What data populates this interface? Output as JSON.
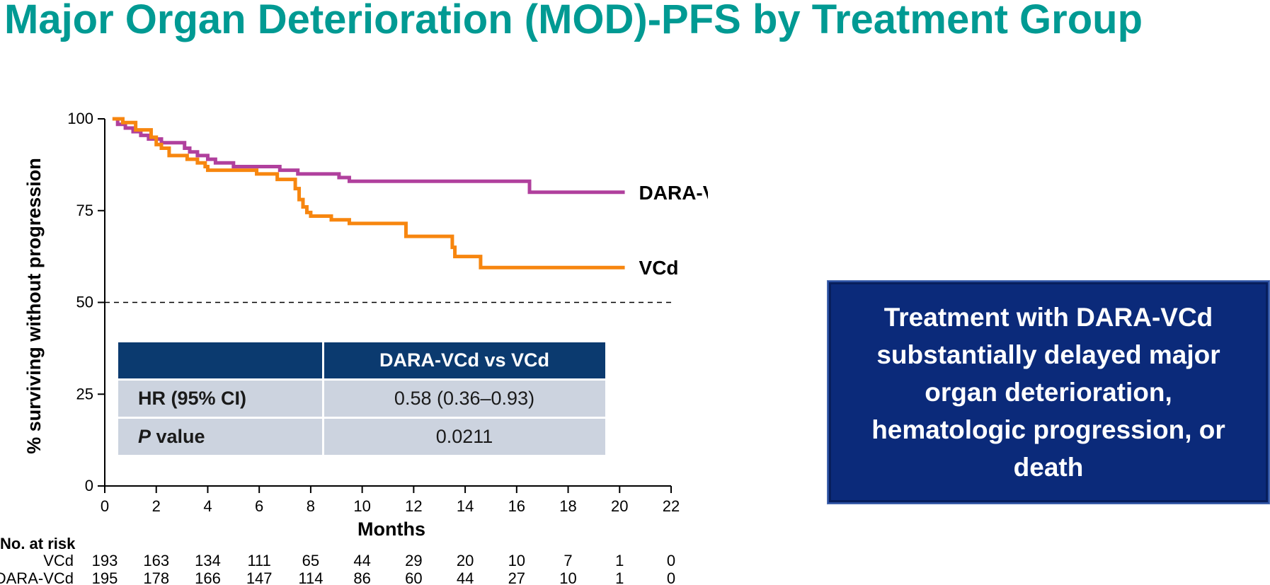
{
  "title": "Major Organ Deterioration (MOD)-PFS by Treatment Group",
  "callout": "Treatment with DARA-VCd substantially delayed major organ deterioration, hematologic progression, or death",
  "stats_table": {
    "header": [
      "",
      "DARA-VCd vs VCd"
    ],
    "rows": [
      {
        "label": "HR (95% CI)",
        "value": "0.58 (0.36–0.93)"
      },
      {
        "label_italic": "P",
        "label_rest": " value",
        "value": "0.0211"
      }
    ]
  },
  "risk_table": {
    "heading": "No. at risk",
    "rows": [
      {
        "name": "VCd",
        "values": [
          "193",
          "163",
          "134",
          "111",
          "65",
          "44",
          "29",
          "20",
          "10",
          "7",
          "1",
          "0"
        ]
      },
      {
        "name": "DARA-VCd",
        "values": [
          "195",
          "178",
          "166",
          "147",
          "114",
          "86",
          "60",
          "44",
          "27",
          "10",
          "1",
          "0"
        ]
      }
    ]
  },
  "chart_data": {
    "type": "line",
    "xlabel": "Months",
    "ylabel": "% surviving without progression",
    "xlim": [
      0,
      22
    ],
    "ylim": [
      0,
      100
    ],
    "x_ticks": [
      "0",
      "2",
      "4",
      "6",
      "8",
      "10",
      "12",
      "14",
      "16",
      "18",
      "20",
      "22"
    ],
    "y_ticks": [
      "0",
      "25",
      "50",
      "75",
      "100"
    ],
    "reference_line": {
      "y": 50,
      "style": "dashed"
    },
    "series": [
      {
        "name": "DARA-VCd",
        "color": "#b0409d",
        "step": true,
        "points": [
          [
            0.3,
            100
          ],
          [
            0.5,
            98.5
          ],
          [
            0.8,
            97.5
          ],
          [
            1.1,
            96.5
          ],
          [
            1.4,
            95.5
          ],
          [
            1.7,
            94.5
          ],
          [
            2.2,
            93.5
          ],
          [
            3.1,
            92
          ],
          [
            3.3,
            91
          ],
          [
            3.6,
            90
          ],
          [
            4.0,
            89
          ],
          [
            4.3,
            88
          ],
          [
            5.0,
            87
          ],
          [
            6.8,
            86
          ],
          [
            7.5,
            85
          ],
          [
            9.1,
            84
          ],
          [
            9.5,
            83
          ],
          [
            16.5,
            80
          ],
          [
            20.2,
            80
          ]
        ]
      },
      {
        "name": "VCd",
        "color": "#f7860f",
        "step": true,
        "points": [
          [
            0.3,
            100
          ],
          [
            0.7,
            99
          ],
          [
            1.2,
            97
          ],
          [
            1.8,
            95
          ],
          [
            2.0,
            93
          ],
          [
            2.2,
            92
          ],
          [
            2.5,
            90
          ],
          [
            3.2,
            89
          ],
          [
            3.6,
            88
          ],
          [
            3.9,
            87
          ],
          [
            4.0,
            86
          ],
          [
            5.9,
            85
          ],
          [
            6.7,
            83.5
          ],
          [
            7.4,
            81
          ],
          [
            7.55,
            78
          ],
          [
            7.7,
            76
          ],
          [
            7.85,
            74.5
          ],
          [
            8.0,
            73.5
          ],
          [
            8.8,
            72.5
          ],
          [
            9.5,
            71.5
          ],
          [
            11.7,
            68
          ],
          [
            13.5,
            65
          ],
          [
            13.6,
            62.5
          ],
          [
            14.6,
            59.5
          ],
          [
            20.2,
            59.5
          ]
        ]
      }
    ]
  }
}
